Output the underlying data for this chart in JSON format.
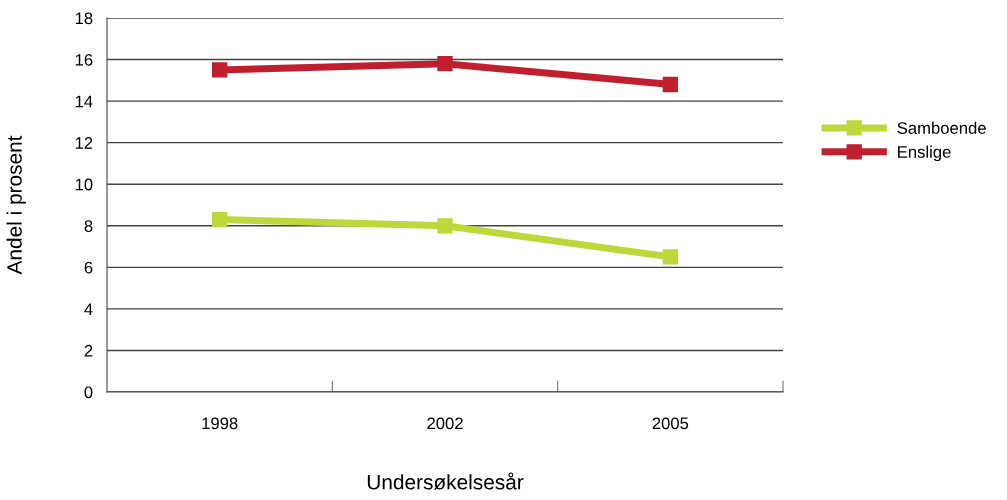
{
  "chart_data": {
    "type": "line",
    "xlabel": "Undersøkelsesår",
    "ylabel": "Andel i prosent",
    "categories": [
      "1998",
      "2002",
      "2005"
    ],
    "series": [
      {
        "name": "Samboende",
        "color": "#bed73a",
        "values": [
          8.3,
          8.0,
          6.5
        ]
      },
      {
        "name": "Enslige",
        "color": "#c01f2e",
        "values": [
          15.5,
          15.8,
          14.8
        ]
      }
    ],
    "ylim": [
      0,
      18
    ],
    "yticks": [
      0,
      2,
      4,
      6,
      8,
      10,
      12,
      14,
      16,
      18
    ],
    "grid": "y",
    "legend": "right",
    "marker": "square",
    "line_style": "solid"
  }
}
